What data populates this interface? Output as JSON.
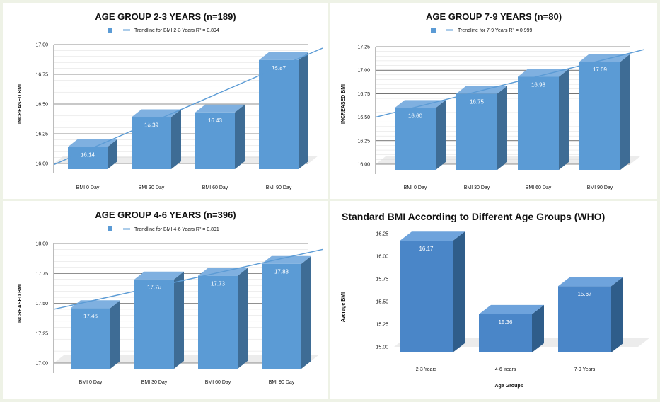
{
  "colors": {
    "front": "#5b9bd5",
    "side": "#3e6c95",
    "top": "#7fb0e0",
    "trend": "#5b9bd5",
    "front4": "#4a86c8",
    "side4": "#2f5d8a",
    "top4": "#6ea3dc"
  },
  "charts": [
    {
      "title": "AGE GROUP 2-3 YEARS (n=189)",
      "legend": "Trendline for BMI 2-3 Years R² = 0.894",
      "ylabel": "INCREASED BMI"
    },
    {
      "title": "AGE GROUP 7-9 YEARS (n=80)",
      "legend": "Trendline for 7-9 Years R² = 0.999",
      "ylabel": "INCREASED BMI"
    },
    {
      "title": "AGE GROUP 4-6 YEARS (n=396)",
      "legend": "Trendline for BMI 4-6 Years R² = 0.891",
      "ylabel": "INCREASED BMI"
    },
    {
      "title": "Standard BMI According to Different Age Groups (WHO)",
      "ylabel": "Average BMI",
      "xlabel": "Age Groups"
    }
  ],
  "chart_data": [
    {
      "type": "bar",
      "title": "AGE GROUP 2-3 YEARS (n=189)",
      "ylabel": "INCREASED BMI",
      "categories": [
        "BMI 0 Day",
        "BMI 30 Day",
        "BMI 60 Day",
        "BMI 90 Day"
      ],
      "values": [
        16.14,
        16.39,
        16.43,
        16.87
      ],
      "value_labels": [
        "16.14",
        "16.39",
        "16.43",
        "16.87"
      ],
      "ylim": [
        16.0,
        17.0
      ],
      "yticks": [
        "16.00",
        "16.25",
        "16.50",
        "16.75",
        "17.00"
      ],
      "trendline": {
        "label": "Trendline for BMI 2-3 Years R² = 0.894",
        "start": 15.99,
        "end": 16.97
      },
      "grid": true
    },
    {
      "type": "bar",
      "title": "AGE GROUP 7-9 YEARS (n=80)",
      "ylabel": "INCREASED BMI",
      "categories": [
        "BMI 0 Day",
        "BMI 30 Day",
        "BMI 60 Day",
        "BMI 90 Day"
      ],
      "values": [
        16.6,
        16.75,
        16.93,
        17.09
      ],
      "value_labels": [
        "16.60",
        "16.75",
        "16.93",
        "17.09"
      ],
      "ylim": [
        16.0,
        17.25
      ],
      "yticks": [
        "16.00",
        "16.25",
        "16.50",
        "16.75",
        "17.00",
        "17.25"
      ],
      "trendline": {
        "label": "Trendline for 7-9 Years R² = 0.999",
        "start": 16.5,
        "end": 17.22
      },
      "grid": true
    },
    {
      "type": "bar",
      "title": "AGE GROUP 4-6 YEARS (n=396)",
      "ylabel": "INCREASED BMI",
      "categories": [
        "BMI 0 Day",
        "BMI 30 Day",
        "BMI 60 Day",
        "BMI 90 Day"
      ],
      "values": [
        17.46,
        17.7,
        17.73,
        17.83
      ],
      "value_labels": [
        "17.46",
        "17.70",
        "17.73",
        "17.83"
      ],
      "ylim": [
        17.0,
        18.0
      ],
      "yticks": [
        "17.00",
        "17.25",
        "17.50",
        "17.75",
        "18.00"
      ],
      "trendline": {
        "label": "Trendline for BMI 4-6 Years R² = 0.891",
        "start": 17.45,
        "end": 17.95
      },
      "grid": true
    },
    {
      "type": "bar",
      "title": "Standard BMI According to Different Age Groups (WHO)",
      "ylabel": "Average BMI",
      "xlabel": "Age Groups",
      "categories": [
        "2-3 Years",
        "4-6 Years",
        "7-9 Years"
      ],
      "values": [
        16.17,
        15.36,
        15.67
      ],
      "value_labels": [
        "16.17",
        "15.36",
        "15.67"
      ],
      "ylim": [
        15.0,
        16.25
      ],
      "yticks": [
        "15.00",
        "15.25",
        "15.50",
        "15.75",
        "16.00",
        "16.25"
      ],
      "grid": false
    }
  ]
}
